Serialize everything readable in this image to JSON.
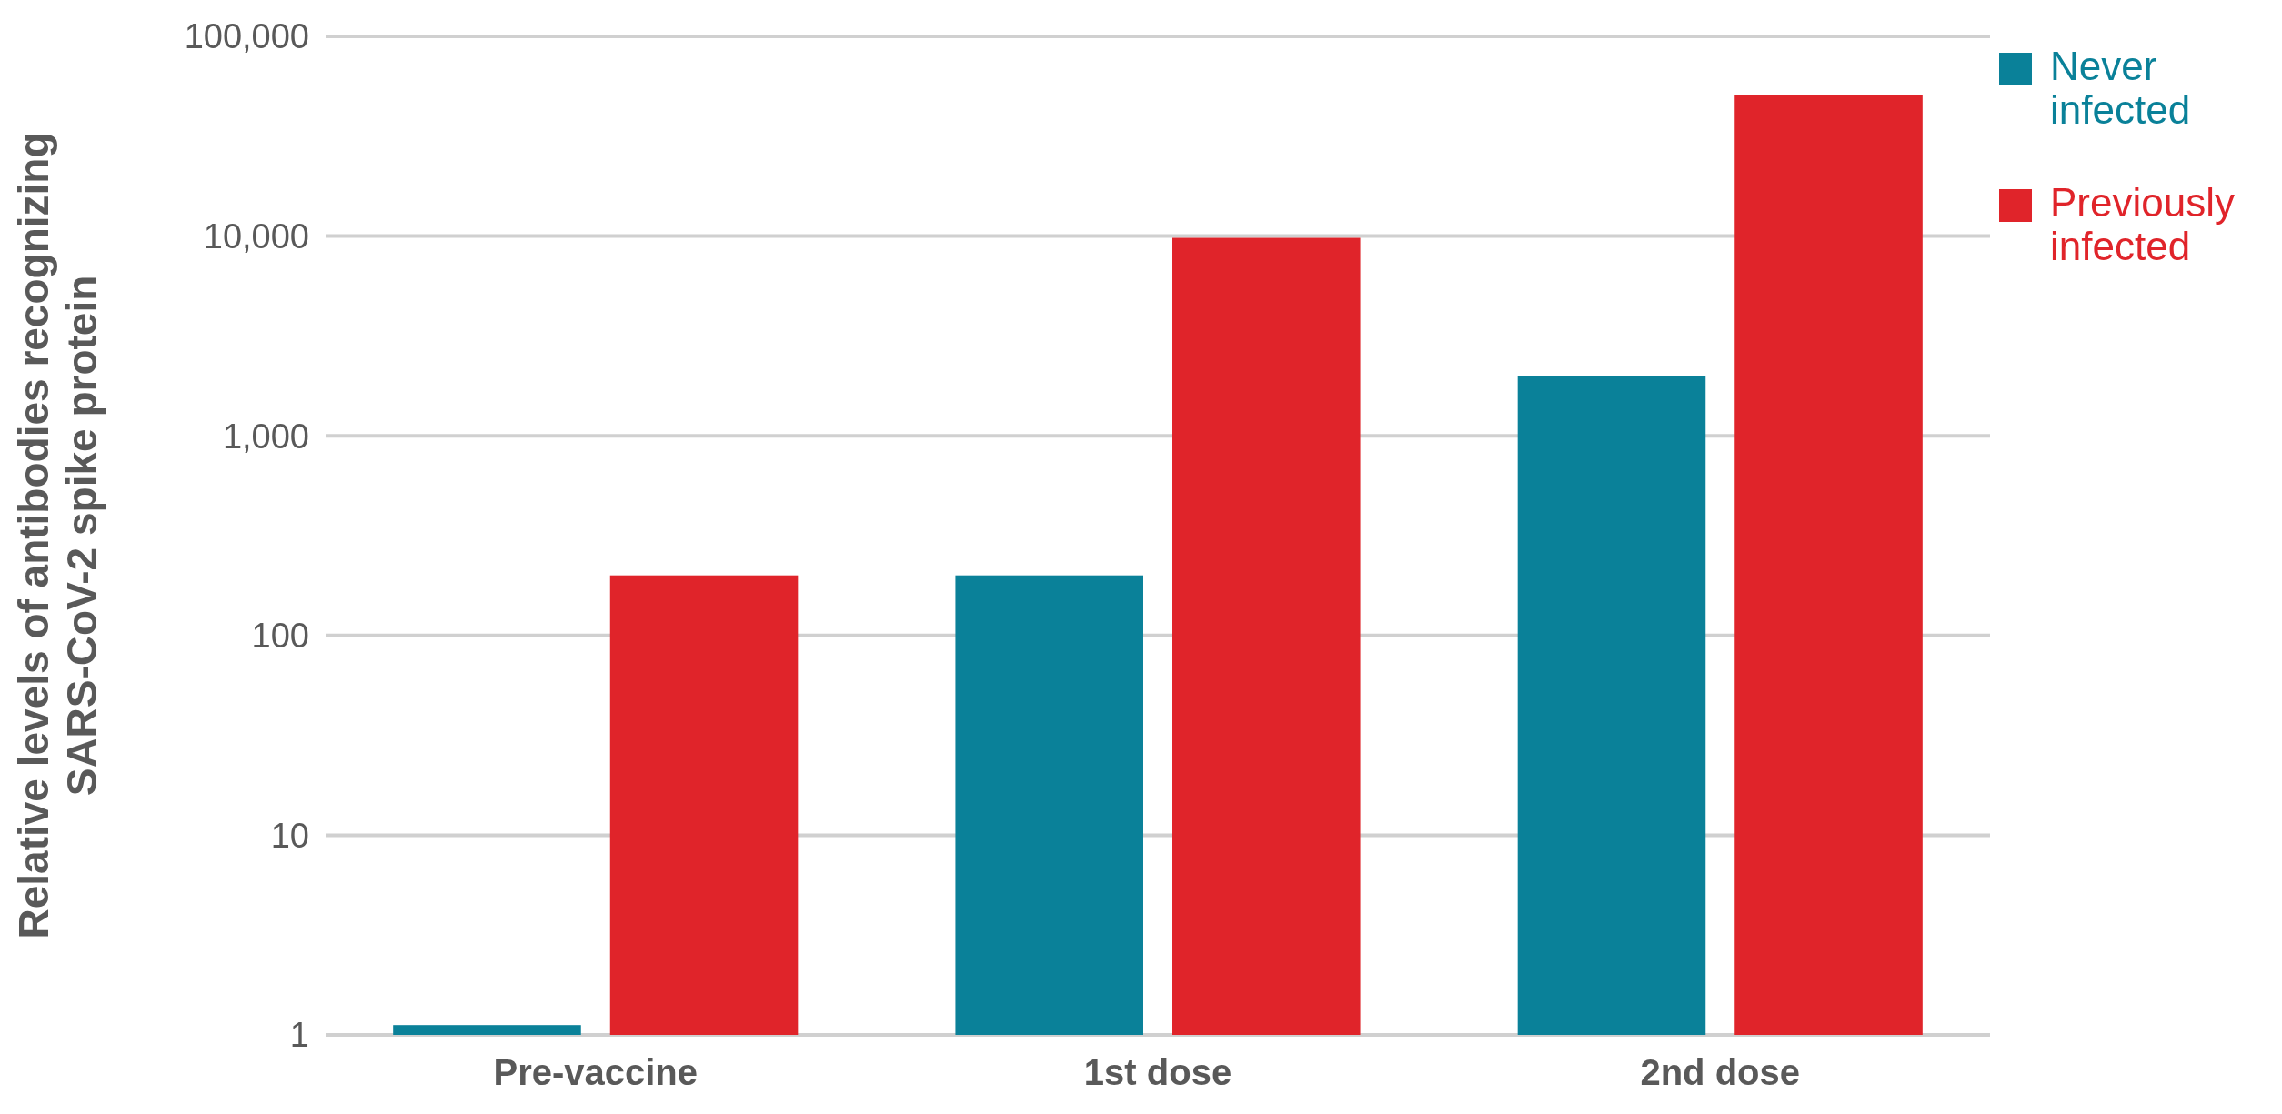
{
  "chart_data": {
    "type": "bar",
    "ylabel": "Relative levels of antibodies recognizing SARS-CoV-2 spike protein",
    "categories": [
      "Pre-vaccine",
      "1st dose",
      "2nd dose"
    ],
    "series": [
      {
        "name": "Never infected",
        "color": "#0a8199",
        "values": [
          1.12,
          200,
          2000
        ]
      },
      {
        "name": "Previously infected",
        "color": "#e0242a",
        "values": [
          200,
          9800,
          51000
        ]
      }
    ],
    "log": true,
    "ylim": [
      1,
      100000
    ],
    "yticks": [
      1,
      10,
      100,
      {
        "value": 1000,
        "label": "1,000"
      },
      {
        "value": 10000,
        "label": "10,000"
      },
      {
        "value": 100000,
        "label": "100,000"
      }
    ],
    "grid": "y",
    "legend": "top right"
  }
}
